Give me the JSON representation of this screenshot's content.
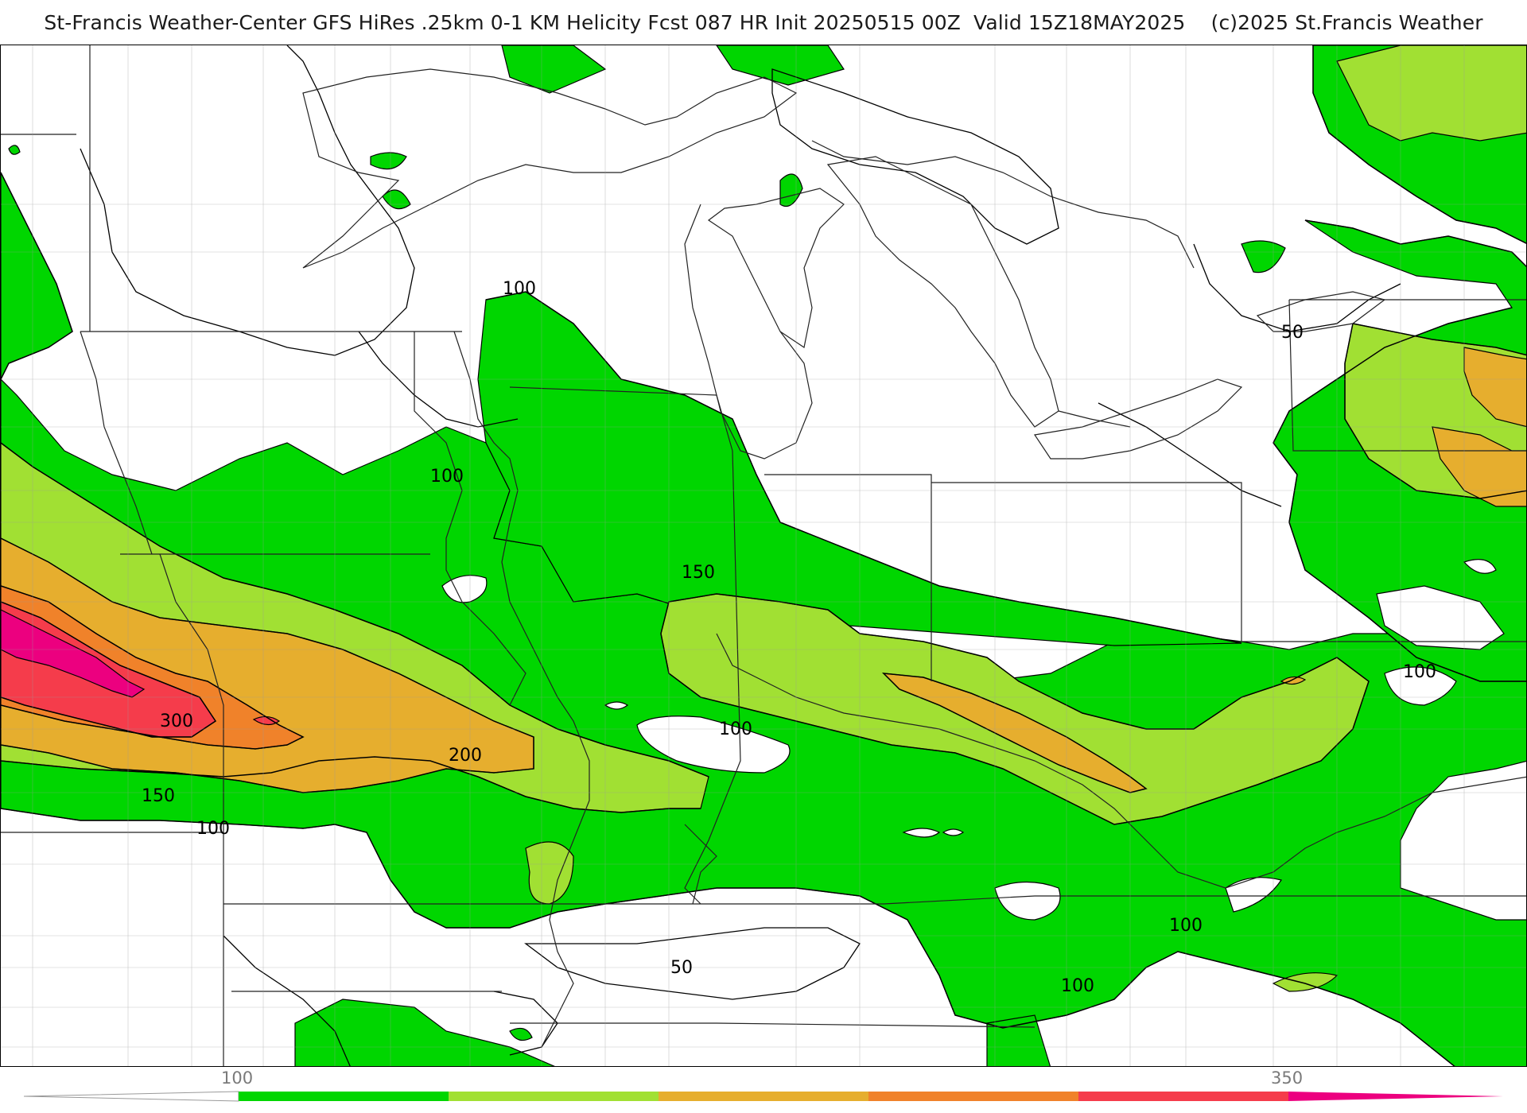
{
  "title": "St-Francis Weather-Center GFS HiRes .25km 0-1 KM Helicity Fcst 087 HR Init 20250515 00Z  Valid 15Z18MAY2025    (c)2025 St.Francis Weather",
  "colors": {
    "c100": "#00d600",
    "c150": "#a1e033",
    "c200": "#e6ae2e",
    "c250": "#f0822a",
    "c300": "#f53c4b",
    "c350": "#ec007f"
  },
  "contour_labels": [
    {
      "id": "top-100",
      "text": "100"
    },
    {
      "id": "west-100",
      "text": "100"
    },
    {
      "id": "west-300",
      "text": "300"
    },
    {
      "id": "west-200",
      "text": "200"
    },
    {
      "id": "west-150",
      "text": "150"
    },
    {
      "id": "south-100",
      "text": "100"
    },
    {
      "id": "center-150",
      "text": "150"
    },
    {
      "id": "center-100",
      "text": "100"
    },
    {
      "id": "south-50",
      "text": "50"
    },
    {
      "id": "southeast-100a",
      "text": "100"
    },
    {
      "id": "southeast-100b",
      "text": "100"
    },
    {
      "id": "east-100",
      "text": "100"
    },
    {
      "id": "northeast-50",
      "text": "50"
    }
  ],
  "legend": {
    "ticks": [
      "100",
      "350"
    ]
  }
}
